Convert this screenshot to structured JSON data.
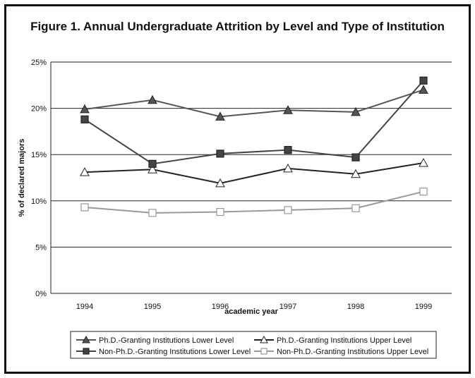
{
  "title": "Figure 1. Annual Undergraduate Attrition by Level and Type of Institution",
  "chart_data": {
    "type": "line",
    "title": "Figure 1. Annual Undergraduate Attrition by Level and Type of Institution",
    "xlabel": "academic year",
    "ylabel": "% of declared majors",
    "categories": [
      "1994",
      "1995",
      "1996",
      "1997",
      "1998",
      "1999"
    ],
    "yticks": [
      "0%",
      "5%",
      "10%",
      "15%",
      "20%",
      "25%"
    ],
    "ylim": [
      0,
      25
    ],
    "grid": true,
    "legend_position": "bottom",
    "series": [
      {
        "name": "Ph.D.-Granting Institutions Lower Level",
        "marker": "triangle-filled",
        "color": "#555555",
        "values": [
          19.9,
          20.9,
          19.1,
          19.8,
          19.6,
          22.0
        ]
      },
      {
        "name": "Ph.D.-Granting Institutions Upper Level",
        "marker": "triangle-open",
        "color": "#222222",
        "values": [
          13.1,
          13.4,
          11.9,
          13.5,
          12.9,
          14.1
        ]
      },
      {
        "name": "Non-Ph.D.-Granting Institutions Lower Level",
        "marker": "square-filled",
        "color": "#444444",
        "values": [
          18.8,
          14.0,
          15.1,
          15.5,
          14.7,
          23.0
        ]
      },
      {
        "name": "Non-Ph.D.-Granting Institutions Upper Level",
        "marker": "square-open",
        "color": "#999999",
        "values": [
          9.3,
          8.7,
          8.8,
          9.0,
          9.2,
          11.0
        ]
      }
    ]
  }
}
